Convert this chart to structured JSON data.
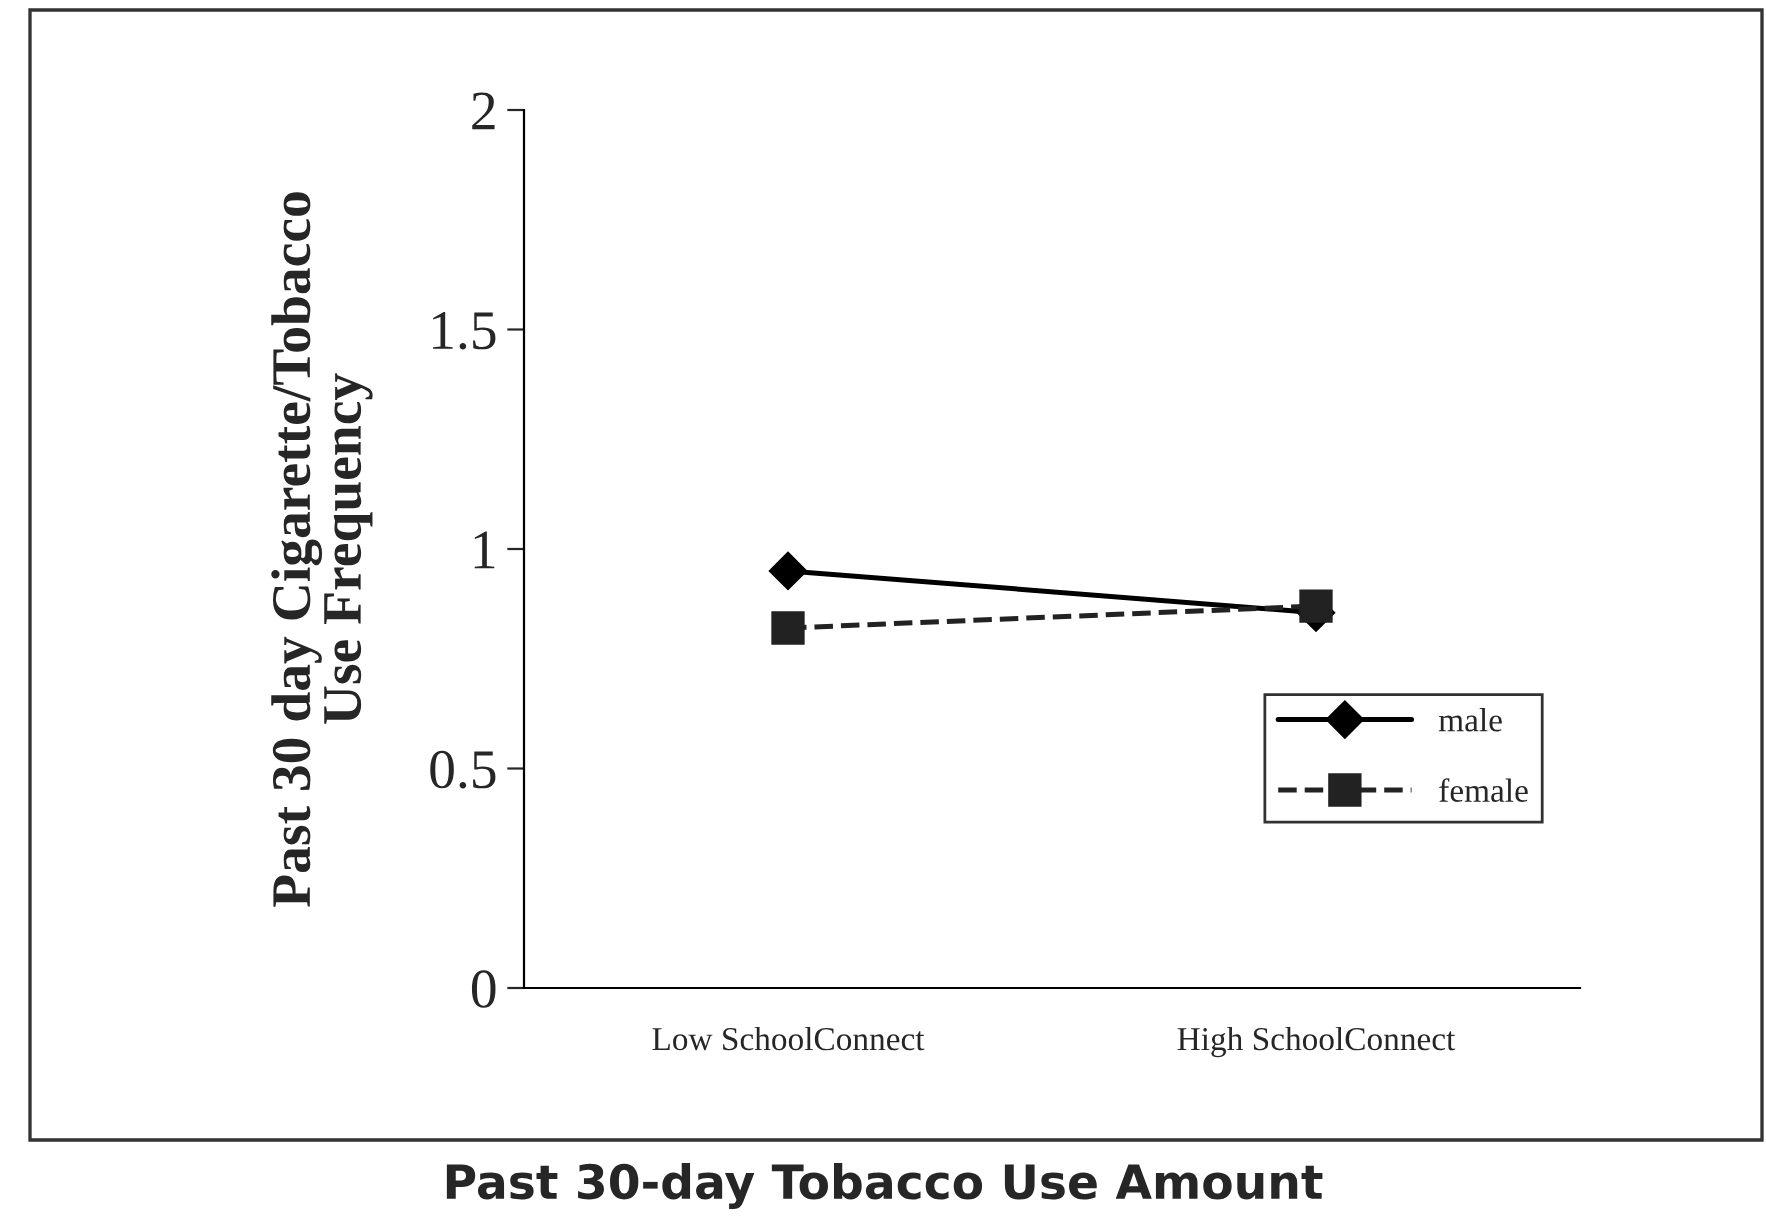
{
  "chart_data": {
    "type": "line",
    "xlabel": "Past 30-day Tobacco Use Amount",
    "ylabel": "Past 30 day Cigarette/Tobacco\nUse Frequency",
    "categories": [
      "Low SchoolConnect",
      "High SchoolConnect"
    ],
    "series": [
      {
        "name": "male",
        "color": "#000000",
        "values": [
          0.95,
          0.855
        ],
        "marker": "diamond",
        "line_style": "solid"
      },
      {
        "name": "female",
        "color": "#222222",
        "values": [
          0.82,
          0.87
        ],
        "marker": "square",
        "line_style": "dashed"
      }
    ],
    "ylim": [
      0,
      2
    ],
    "yticks": [
      0,
      0.5,
      1,
      1.5,
      2
    ],
    "grid": false,
    "legend": "bottom right"
  }
}
